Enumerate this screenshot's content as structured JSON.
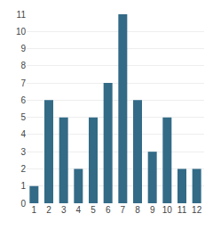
{
  "chart_data": {
    "type": "bar",
    "categories": [
      "1",
      "2",
      "3",
      "4",
      "5",
      "6",
      "7",
      "8",
      "9",
      "10",
      "11",
      "12"
    ],
    "values": [
      1,
      6,
      5,
      2,
      5,
      7,
      11,
      6,
      3,
      5,
      2,
      2
    ],
    "color": "#336b87",
    "ylim": [
      0,
      11
    ],
    "yticks": [
      0,
      1,
      2,
      3,
      4,
      5,
      6,
      7,
      8,
      9,
      10,
      11
    ],
    "grid": true
  }
}
